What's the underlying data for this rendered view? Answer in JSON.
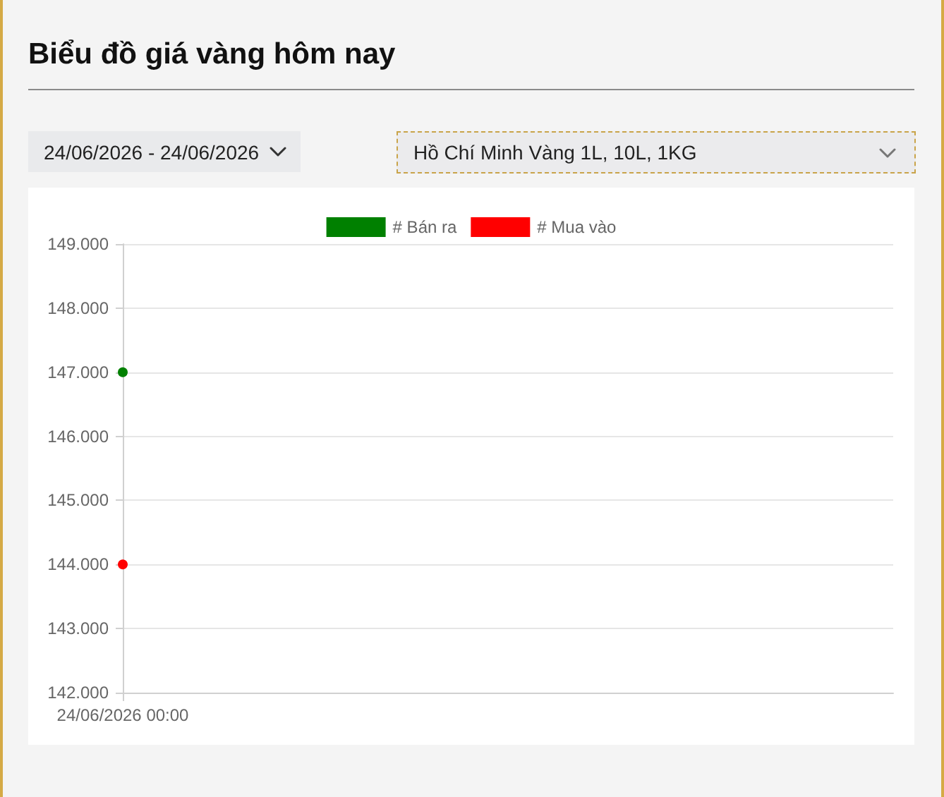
{
  "chart_data": {
    "type": "line",
    "title": "Biểu đồ giá vàng hôm nay",
    "annotations": [
      "24/06/2026 - 24/06/2026",
      "Hồ Chí Minh Vàng 1L, 10L, 1KG"
    ],
    "categories": [
      "24/06/2026 00:00"
    ],
    "series": [
      {
        "name": "# Bán ra",
        "color": "#008000",
        "values": [
          147000
        ]
      },
      {
        "name": "# Mua vào",
        "color": "#ff0000",
        "values": [
          144000
        ]
      }
    ],
    "ylim": [
      142000,
      149000
    ],
    "yticks": [
      {
        "value": 142000,
        "label": "142.000"
      },
      {
        "value": 143000,
        "label": "143.000"
      },
      {
        "value": 144000,
        "label": "144.000"
      },
      {
        "value": 145000,
        "label": "145.000"
      },
      {
        "value": 146000,
        "label": "146.000"
      },
      {
        "value": 147000,
        "label": "147.000"
      },
      {
        "value": 148000,
        "label": "148.000"
      },
      {
        "value": 149000,
        "label": "149.000"
      }
    ],
    "grid": "y",
    "legend": "top",
    "marker": "circle"
  }
}
